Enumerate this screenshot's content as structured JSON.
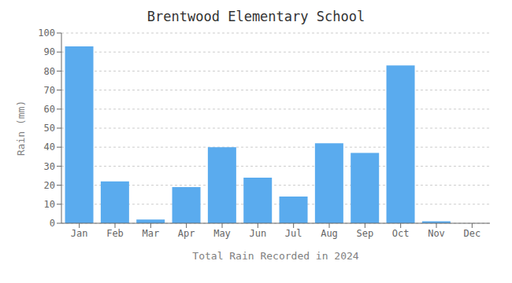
{
  "chart_data": {
    "type": "bar",
    "title": "Brentwood Elementary School",
    "xlabel": "Total Rain Recorded in 2024",
    "ylabel": "Rain (mm)",
    "categories": [
      "Jan",
      "Feb",
      "Mar",
      "Apr",
      "May",
      "Jun",
      "Jul",
      "Aug",
      "Sep",
      "Oct",
      "Nov",
      "Dec"
    ],
    "values": [
      93,
      22,
      2,
      19,
      40,
      24,
      14,
      42,
      37,
      83,
      1,
      0
    ],
    "color": "#5aabee",
    "ylim": [
      0,
      100
    ],
    "yticks": [
      0,
      10,
      20,
      30,
      40,
      50,
      60,
      70,
      80,
      90,
      100
    ],
    "grid": true
  }
}
